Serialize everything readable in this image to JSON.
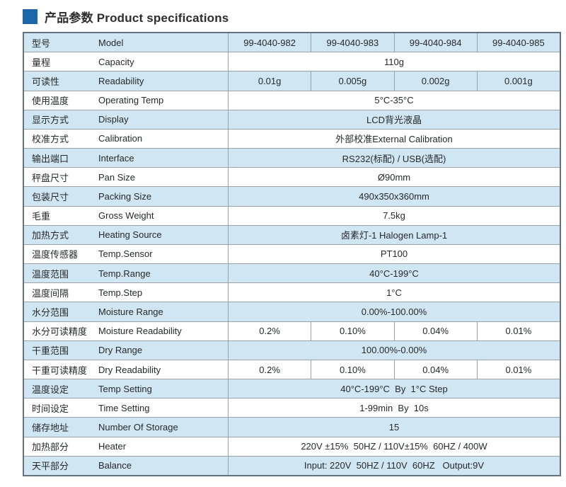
{
  "header": {
    "title": "产品参数 Product specifications",
    "marker_color": "#1b67a8"
  },
  "table": {
    "colors": {
      "row_blue": "#d0e6f3",
      "row_white": "#ffffff",
      "grid_line": "#9aa2a8",
      "outer_border": "#66727b",
      "text": "#27292b"
    },
    "rows": [
      {
        "cn": "型号",
        "en": "Model",
        "values": [
          "99-4040-982",
          "99-4040-983",
          "99-4040-984",
          "99-4040-985"
        ]
      },
      {
        "cn": "量程",
        "en": "Capacity",
        "values": [
          "110g"
        ]
      },
      {
        "cn": "可读性",
        "en": "Readability",
        "values": [
          "0.01g",
          "0.005g",
          "0.002g",
          "0.001g"
        ]
      },
      {
        "cn": "使用温度",
        "en": "Operating Temp",
        "values": [
          "5°C-35°C"
        ]
      },
      {
        "cn": "显示方式",
        "en": "Display",
        "values": [
          "LCD背光液晶"
        ]
      },
      {
        "cn": "校准方式",
        "en": "Calibration",
        "values": [
          "外部校准External Calibration"
        ]
      },
      {
        "cn": "输出端口",
        "en": "Interface",
        "values": [
          "RS232(标配) / USB(选配)"
        ]
      },
      {
        "cn": "秤盘尺寸",
        "en": "Pan Size",
        "values": [
          "Ø90mm"
        ]
      },
      {
        "cn": "包装尺寸",
        "en": "Packing Size",
        "values": [
          "490x350x360mm"
        ]
      },
      {
        "cn": "毛重",
        "en": "Gross Weight",
        "values": [
          "7.5kg"
        ]
      },
      {
        "cn": "加热方式",
        "en": "Heating Source",
        "values": [
          "卤素灯-1 Halogen Lamp-1"
        ]
      },
      {
        "cn": "温度传感器",
        "en": "Temp.Sensor",
        "values": [
          "PT100"
        ]
      },
      {
        "cn": "温度范围",
        "en": "Temp.Range",
        "values": [
          "40°C-199°C"
        ]
      },
      {
        "cn": "温度间隔",
        "en": "Temp.Step",
        "values": [
          "1°C"
        ]
      },
      {
        "cn": "水分范围",
        "en": "Moisture Range",
        "values": [
          "0.00%-100.00%"
        ]
      },
      {
        "cn": "水分可读精度",
        "en": "Moisture Readability",
        "values": [
          "0.2%",
          "0.10%",
          "0.04%",
          "0.01%"
        ]
      },
      {
        "cn": "干重范围",
        "en": "Dry Range",
        "values": [
          "100.00%-0.00%"
        ]
      },
      {
        "cn": "干重可读精度",
        "en": "Dry Readability",
        "values": [
          "0.2%",
          "0.10%",
          "0.04%",
          "0.01%"
        ]
      },
      {
        "cn": "温度设定",
        "en": "Temp Setting",
        "values": [
          "40°C-199°C  By  1°C Step"
        ]
      },
      {
        "cn": "时间设定",
        "en": "Time Setting",
        "values": [
          "1-99min  By  10s"
        ]
      },
      {
        "cn": "储存地址",
        "en": "Number Of Storage",
        "values": [
          "15"
        ]
      },
      {
        "cn": "加热部分",
        "en": "Heater",
        "values": [
          "220V ±15%  50HZ / 110V±15%  60HZ / 400W"
        ]
      },
      {
        "cn": "天平部分",
        "en": "Balance",
        "values": [
          "Input: 220V  50HZ / 110V  60HZ   Output:9V"
        ]
      }
    ]
  }
}
